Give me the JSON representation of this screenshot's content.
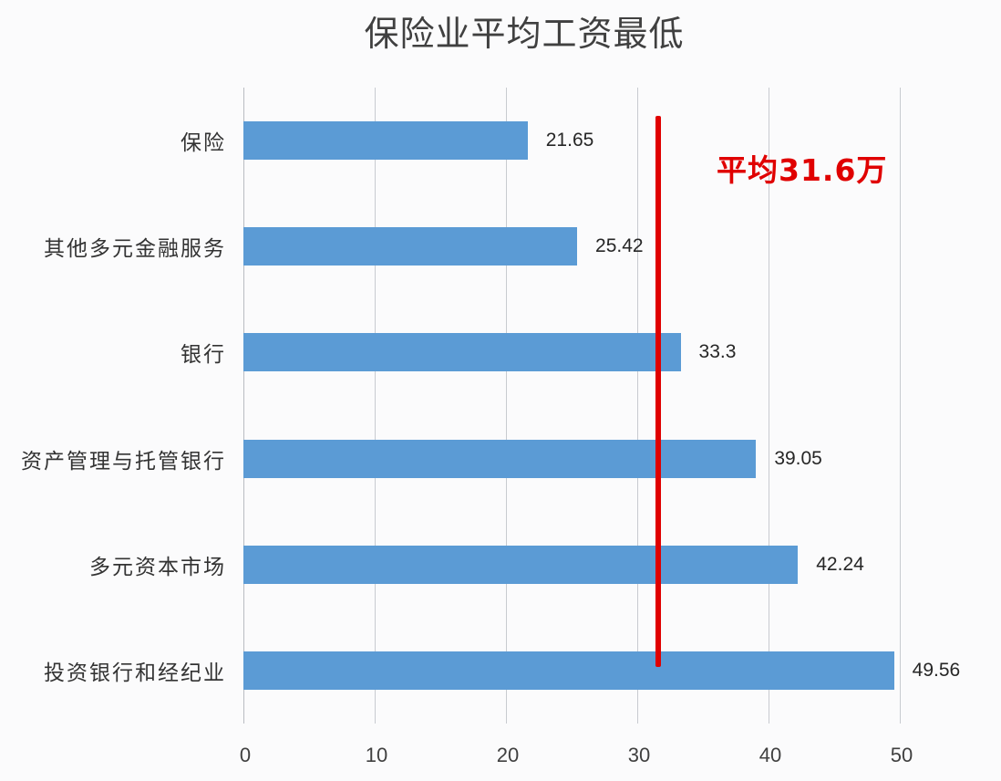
{
  "chart_data": {
    "type": "bar",
    "orientation": "horizontal",
    "title": "保险业平均工资最低",
    "xlabel": "",
    "ylabel": "",
    "categories": [
      "保险",
      "其他多元金融服务",
      "银行",
      "资产管理与托管银行",
      "多元资本市场",
      "投资银行和经纪业"
    ],
    "values": [
      21.65,
      25.42,
      33.3,
      39.05,
      42.24,
      49.56
    ],
    "value_labels": [
      "21.65",
      "25.42",
      "33.3",
      "39.05",
      "42.24",
      "49.56"
    ],
    "xlim": [
      0,
      50
    ],
    "x_ticks": [
      "0",
      "10",
      "20",
      "30",
      "40",
      "50"
    ],
    "grid": true,
    "legend": null,
    "bar_color": "#5b9bd5",
    "annotations": [
      {
        "type": "vertical_line",
        "x": 31.6,
        "color": "#e00000",
        "label": "平均31.6万"
      }
    ]
  },
  "colors": {
    "bar": "#5b9bd5",
    "average_line": "#e00000",
    "gridline": "#c8cbd0",
    "text": "#333333"
  }
}
